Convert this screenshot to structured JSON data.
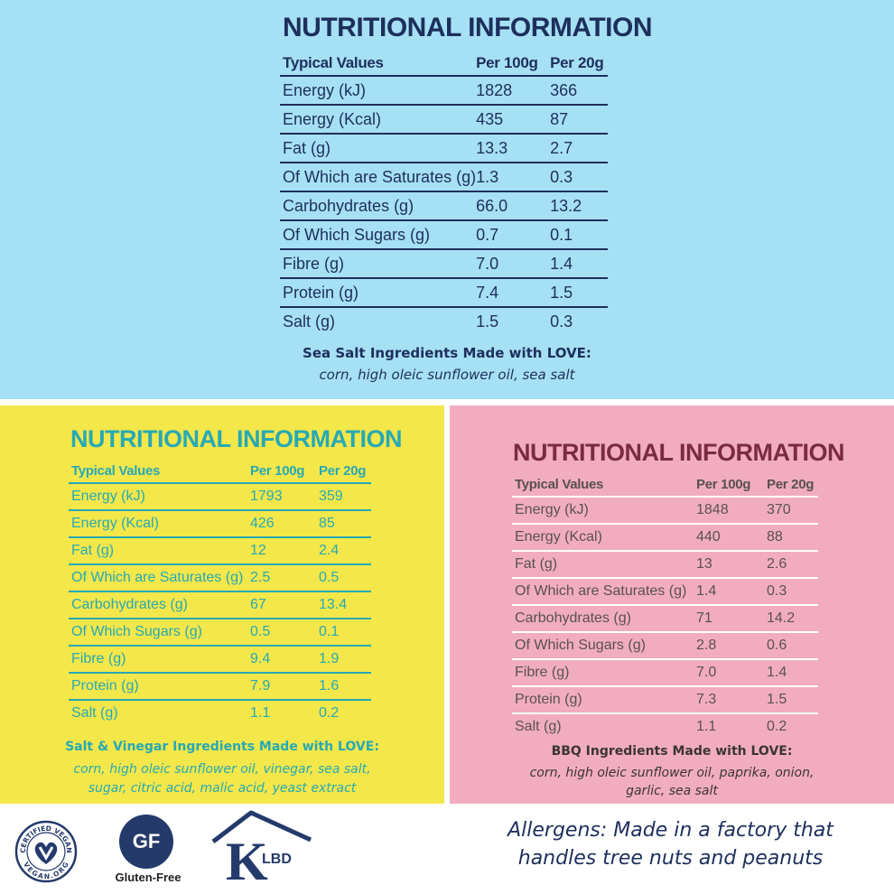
{
  "colors": {
    "blue_bg": "#a6e0f4",
    "navy": "#1d2f5c",
    "yellow_bg": "#f4e74a",
    "teal": "#27a9b4",
    "pink_bg": "#f1adbf",
    "maroon": "#7a2b44",
    "grey_text": "#5a5054"
  },
  "panels": {
    "top": {
      "title": "NUTRITIONAL INFORMATION",
      "headers": [
        "Typical Values",
        "Per 100g",
        "Per 20g"
      ],
      "rows": [
        [
          "Energy (kJ)",
          "1828",
          "366"
        ],
        [
          "Energy (Kcal)",
          "435",
          "87"
        ],
        [
          "Fat (g)",
          "13.3",
          "2.7"
        ],
        [
          "Of Which are Saturates (g)",
          "1.3",
          "0.3"
        ],
        [
          "Carbohydrates (g)",
          "66.0",
          "13.2"
        ],
        [
          "Of Which Sugars (g)",
          "0.7",
          "0.1"
        ],
        [
          "Fibre (g)",
          "7.0",
          "1.4"
        ],
        [
          "Protein (g)",
          "7.4",
          "1.5"
        ],
        [
          "Salt (g)",
          "1.5",
          "0.3"
        ]
      ],
      "ingredients_title": "Sea Salt Ingredients Made with LOVE:",
      "ingredients_lines": [
        "corn, high oleic sunflower oil, sea salt"
      ]
    },
    "left": {
      "title": "NUTRITIONAL INFORMATION",
      "headers": [
        "Typical Values",
        "Per 100g",
        "Per 20g"
      ],
      "rows": [
        [
          "Energy (kJ)",
          "1793",
          "359"
        ],
        [
          "Energy (Kcal)",
          "426",
          "85"
        ],
        [
          "Fat (g)",
          "12",
          "2.4"
        ],
        [
          "Of Which are Saturates (g)",
          "2.5",
          "0.5"
        ],
        [
          "Carbohydrates (g)",
          "67",
          "13.4"
        ],
        [
          "Of Which Sugars (g)",
          "0.5",
          "0.1"
        ],
        [
          "Fibre (g)",
          "9.4",
          "1.9"
        ],
        [
          "Protein (g)",
          "7.9",
          "1.6"
        ],
        [
          "Salt (g)",
          "1.1",
          "0.2"
        ]
      ],
      "ingredients_title": "Salt & Vinegar Ingredients Made with LOVE:",
      "ingredients_lines": [
        "corn, high oleic sunflower oil, vinegar, sea salt,",
        "sugar, citric acid, malic acid, yeast extract"
      ]
    },
    "right": {
      "title": "NUTRITIONAL INFORMATION",
      "headers": [
        "Typical Values",
        "Per 100g",
        "Per 20g"
      ],
      "rows": [
        [
          "Energy (kJ)",
          "1848",
          "370"
        ],
        [
          "Energy (Kcal)",
          "440",
          "88"
        ],
        [
          "Fat (g)",
          "13",
          "2.6"
        ],
        [
          "Of Which are Saturates (g)",
          "1.4",
          "0.3"
        ],
        [
          "Carbohydrates (g)",
          "71",
          "14.2"
        ],
        [
          "Of Which Sugars (g)",
          "2.8",
          "0.6"
        ],
        [
          "Fibre (g)",
          "7.0",
          "1.4"
        ],
        [
          "Protein (g)",
          "7.3",
          "1.5"
        ],
        [
          "Salt (g)",
          "1.1",
          "0.2"
        ]
      ],
      "ingredients_title": "BBQ Ingredients Made with LOVE:",
      "ingredients_lines": [
        "corn, high oleic sunflower oil, paprika, onion,",
        "garlic, sea salt"
      ]
    }
  },
  "footer": {
    "vegan_badge": {
      "icon": "certified-vegan-logo",
      "top_text": "CERTIFIED VEGAN",
      "bottom_text": "VEGAN.ORG"
    },
    "gf_badge": {
      "icon": "gluten-free-logo",
      "circle_text": "GF",
      "label": "Gluten-Free"
    },
    "kosher_badge": {
      "icon": "klbd-kosher-logo",
      "letter": "K",
      "text": "LBD"
    },
    "allergen_lines": [
      "Allergens: Made in a factory that",
      "handles tree nuts and peanuts"
    ]
  }
}
